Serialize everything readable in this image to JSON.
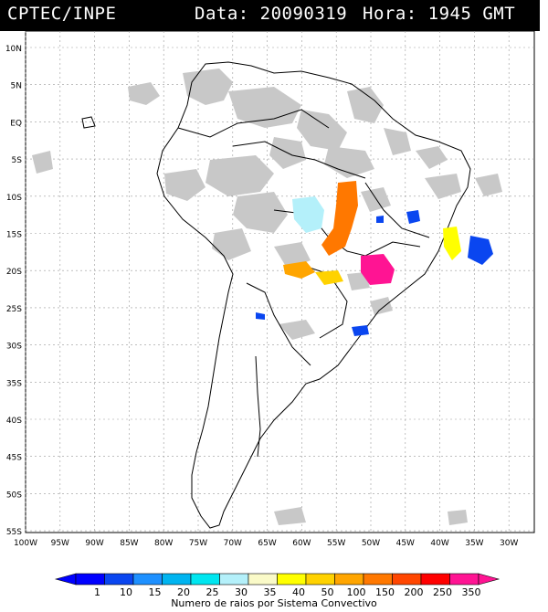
{
  "header": {
    "source": "CPTEC/INPE",
    "date_label": "Data: 20090319",
    "time_label": "Hora: 1945 GMT"
  },
  "map": {
    "lat_labels": [
      "10N",
      "5N",
      "EQ",
      "5S",
      "10S",
      "15S",
      "20S",
      "25S",
      "30S",
      "35S",
      "40S",
      "45S",
      "50S",
      "55S"
    ],
    "lon_labels": [
      "100W",
      "95W",
      "90W",
      "85W",
      "80W",
      "75W",
      "70W",
      "65W",
      "60W",
      "55W",
      "50W",
      "45W",
      "40W",
      "35W",
      "30W"
    ]
  },
  "legend": {
    "caption": "Numero de raios por Sistema Convectivo",
    "tick_labels": [
      "1",
      "10",
      "15",
      "20",
      "25",
      "30",
      "35",
      "40",
      "50",
      "100",
      "150",
      "200",
      "250",
      "350"
    ],
    "colors": [
      "#0000ff",
      "#0a46f0",
      "#1e90ff",
      "#00b4f0",
      "#00e6f0",
      "#b4f0fa",
      "#fafac8",
      "#ffff00",
      "#ffd200",
      "#ffa500",
      "#ff7800",
      "#ff4600",
      "#ff0000",
      "#ff1493"
    ]
  }
}
